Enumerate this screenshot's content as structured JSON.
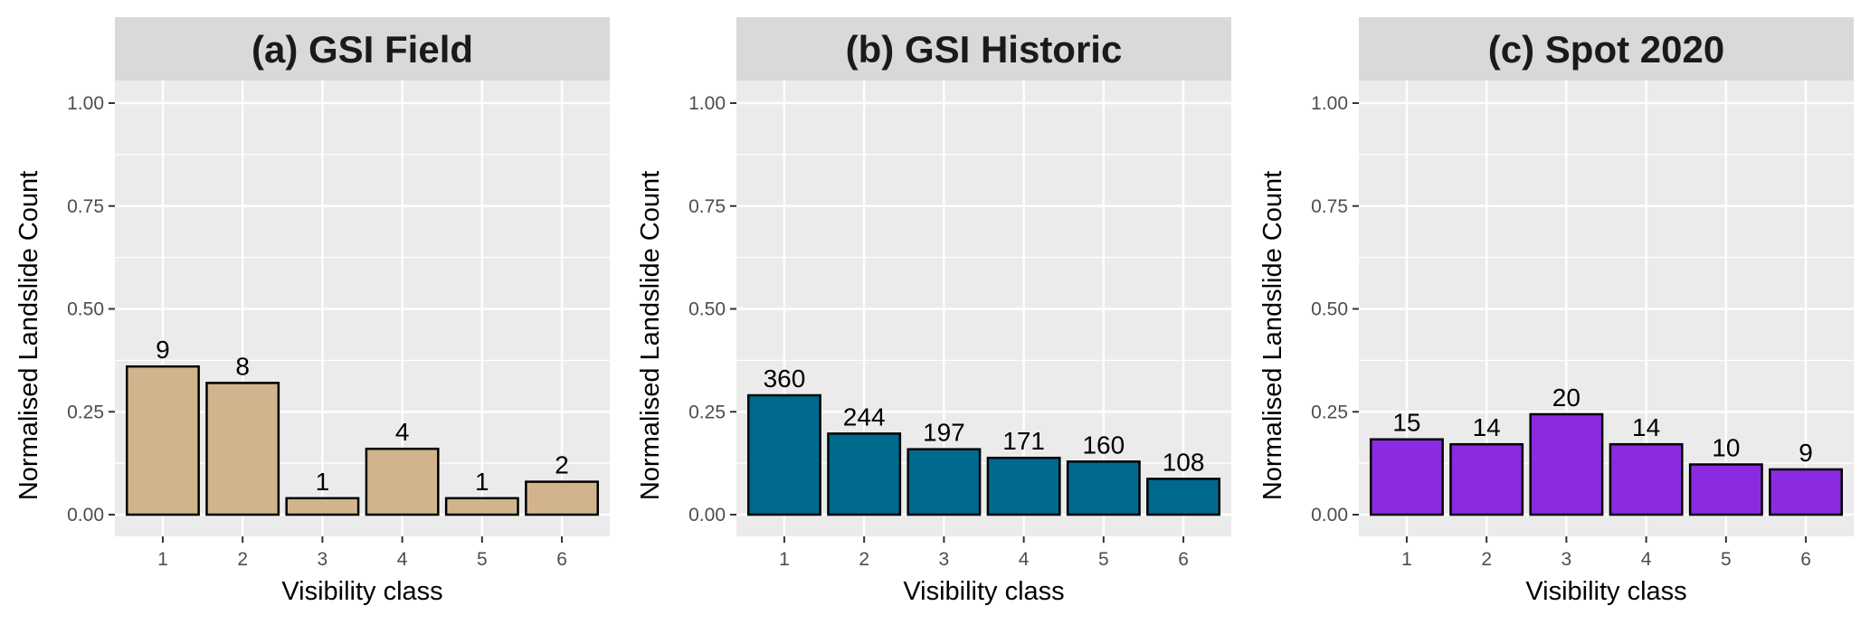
{
  "figure": {
    "panel_background": "#ebebeb",
    "strip_background": "#d9d9d9",
    "grid_color": "#ffffff",
    "bar_outline": "#000000"
  },
  "chart_data": [
    {
      "type": "bar",
      "title": "(a) GSI Field",
      "xlabel": "Visibility class",
      "ylabel": "Normalised Landslide Count",
      "categories": [
        "1",
        "2",
        "3",
        "4",
        "5",
        "6"
      ],
      "values": [
        0.36,
        0.32,
        0.04,
        0.16,
        0.04,
        0.08
      ],
      "labels": [
        "9",
        "8",
        "1",
        "4",
        "1",
        "2"
      ],
      "ylim": [
        0,
        1.0
      ],
      "yticks": [
        "0.00",
        "0.25",
        "0.50",
        "0.75",
        "1.00"
      ],
      "color": "#d2b48c",
      "grid": true
    },
    {
      "type": "bar",
      "title": "(b) GSI Historic",
      "xlabel": "Visibility class",
      "ylabel": "Normalised Landslide Count",
      "categories": [
        "1",
        "2",
        "3",
        "4",
        "5",
        "6"
      ],
      "values": [
        0.29,
        0.197,
        0.159,
        0.138,
        0.129,
        0.087
      ],
      "labels": [
        "360",
        "244",
        "197",
        "171",
        "160",
        "108"
      ],
      "ylim": [
        0,
        1.0
      ],
      "yticks": [
        "0.00",
        "0.25",
        "0.50",
        "0.75",
        "1.00"
      ],
      "color": "#006a8e",
      "grid": true
    },
    {
      "type": "bar",
      "title": "(c) Spot 2020",
      "xlabel": "Visibility class",
      "ylabel": "Normalised Landslide Count",
      "categories": [
        "1",
        "2",
        "3",
        "4",
        "5",
        "6"
      ],
      "values": [
        0.183,
        0.171,
        0.244,
        0.171,
        0.122,
        0.11
      ],
      "labels": [
        "15",
        "14",
        "20",
        "14",
        "10",
        "9"
      ],
      "ylim": [
        0,
        1.0
      ],
      "yticks": [
        "0.00",
        "0.25",
        "0.50",
        "0.75",
        "1.00"
      ],
      "color": "#8a2be2",
      "grid": true
    }
  ]
}
